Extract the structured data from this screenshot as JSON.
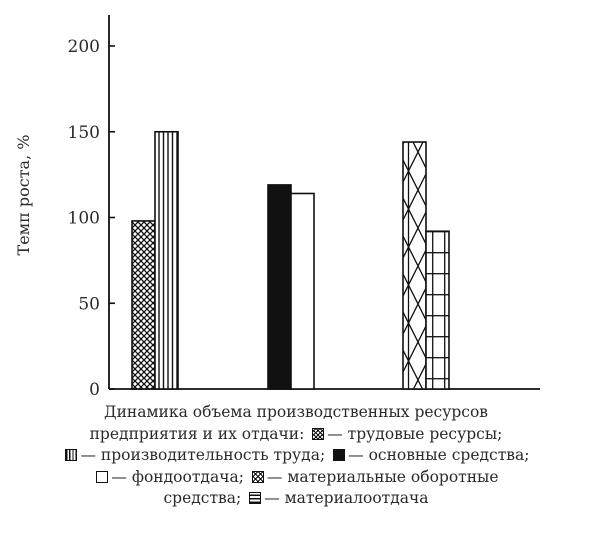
{
  "chart_data": {
    "type": "bar",
    "title": "",
    "xlabel": "",
    "ylabel": "Темп роста, %",
    "ylim": [
      0,
      200
    ],
    "yticks": [
      0,
      50,
      100,
      150,
      200
    ],
    "grid": false,
    "groups": [
      {
        "bars": [
          {
            "series": "labor",
            "value": 98
          },
          {
            "series": "productivity",
            "value": 150
          }
        ]
      },
      {
        "bars": [
          {
            "series": "fixed_assets",
            "value": 119
          },
          {
            "series": "asset_return",
            "value": 114
          }
        ]
      },
      {
        "bars": [
          {
            "series": "working_capital",
            "value": 144
          },
          {
            "series": "material_efficiency",
            "value": 92
          }
        ]
      }
    ],
    "series": [
      {
        "id": "labor",
        "name": "трудовые ресурсы",
        "pattern": "crosshatch"
      },
      {
        "id": "productivity",
        "name": "производительность труда",
        "pattern": "vertical-lines"
      },
      {
        "id": "fixed_assets",
        "name": "основные средства",
        "pattern": "solid",
        "color": "#111111"
      },
      {
        "id": "asset_return",
        "name": "фондоотдача",
        "pattern": "none",
        "color": "#ffffff"
      },
      {
        "id": "working_capital",
        "name": "материальные оборотные средства",
        "pattern": "x-hatch"
      },
      {
        "id": "material_efficiency",
        "name": "материалоотдача",
        "pattern": "grid"
      }
    ]
  },
  "caption": {
    "intro_line1": "Динамика объема производственных ресурсов",
    "intro_line2": "предприятия и их отдачи:",
    "dash": "—",
    "sep": ";",
    "labor": "трудовые ресурсы",
    "productivity": "производительность труда",
    "fixed_assets": "основные средства",
    "asset_return": "фондоотдача",
    "working_capital": "материальные оборотные",
    "working_capital_2": "средства",
    "material_efficiency": "материалоотдача"
  }
}
